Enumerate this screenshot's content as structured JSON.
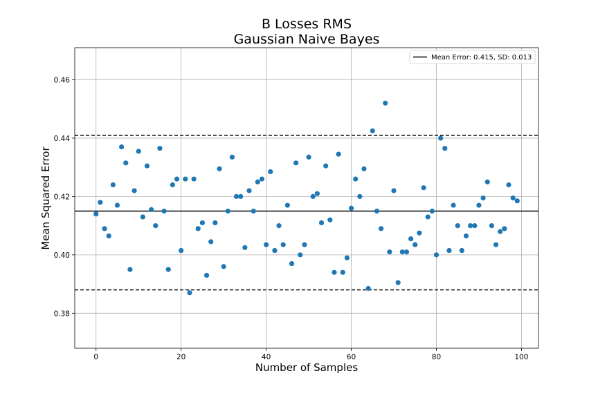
{
  "chart_data": {
    "type": "scatter",
    "title": "B Losses RMS",
    "subtitle": "Gaussian Naive Bayes",
    "xlabel": "Number of Samples",
    "ylabel": "Mean Squared Error",
    "xlim": [
      -5,
      104
    ],
    "ylim": [
      0.368,
      0.471
    ],
    "xticks": [
      0,
      20,
      40,
      60,
      80,
      100
    ],
    "yticks": [
      0.38,
      0.4,
      0.42,
      0.44,
      0.46
    ],
    "ytick_labels": [
      "0.38",
      "0.40",
      "0.42",
      "0.44",
      "0.46"
    ],
    "grid": true,
    "legend_position": "top-right",
    "marker_color": "#1f77b4",
    "mean_line": {
      "label": "Mean Error: 0.415, SD: 0.013",
      "value": 0.415,
      "style": "solid",
      "color": "#000000"
    },
    "band_lines": [
      {
        "value": 0.441,
        "style": "dashed",
        "color": "#000000"
      },
      {
        "value": 0.388,
        "style": "dashed",
        "color": "#000000"
      }
    ],
    "series": [
      {
        "x": [
          0,
          1,
          2,
          3,
          4,
          5,
          6,
          7,
          8,
          9,
          10,
          11,
          12,
          13,
          14,
          15,
          16,
          17,
          18,
          19,
          20,
          21,
          22,
          23,
          24,
          25,
          26,
          27,
          28,
          29,
          30,
          31,
          32,
          33,
          34,
          35,
          36,
          37,
          38,
          39,
          40,
          41,
          42,
          43,
          44,
          45,
          46,
          47,
          48,
          49,
          50,
          51,
          52,
          53,
          54,
          55,
          56,
          57,
          58,
          59,
          60,
          61,
          62,
          63,
          64,
          65,
          66,
          67,
          68,
          69,
          70,
          71,
          72,
          73,
          74,
          75,
          76,
          77,
          78,
          79,
          80,
          81,
          82,
          83,
          84,
          85,
          86,
          87,
          88,
          89,
          90,
          91,
          92,
          93,
          94,
          95,
          96,
          97,
          98,
          99
        ],
        "y": [
          0.414,
          0.418,
          0.409,
          0.4065,
          0.424,
          0.417,
          0.437,
          0.4315,
          0.395,
          0.422,
          0.4355,
          0.413,
          0.4305,
          0.4155,
          0.41,
          0.4365,
          0.415,
          0.395,
          0.424,
          0.426,
          0.4015,
          0.426,
          0.387,
          0.426,
          0.409,
          0.411,
          0.393,
          0.4045,
          0.411,
          0.4295,
          0.396,
          0.415,
          0.4335,
          0.42,
          0.42,
          0.4025,
          0.422,
          0.415,
          0.425,
          0.426,
          0.4035,
          0.4285,
          0.4015,
          0.41,
          0.4035,
          0.417,
          0.397,
          0.4315,
          0.4,
          0.4035,
          0.4335,
          0.42,
          0.421,
          0.411,
          0.4305,
          0.412,
          0.394,
          0.4345,
          0.394,
          0.399,
          0.416,
          0.426,
          0.42,
          0.4295,
          0.3885,
          0.4425,
          0.415,
          0.409,
          0.452,
          0.401,
          0.422,
          0.3905,
          0.401,
          0.401,
          0.4055,
          0.4035,
          0.4075,
          0.423,
          0.413,
          0.415,
          0.4,
          0.44,
          0.4365,
          0.4015,
          0.417,
          0.41,
          0.4015,
          0.4065,
          0.41,
          0.41,
          0.417,
          0.4195,
          0.425,
          0.41,
          0.4035,
          0.408,
          0.409,
          0.424,
          0.4195,
          0.4185
        ]
      }
    ]
  }
}
